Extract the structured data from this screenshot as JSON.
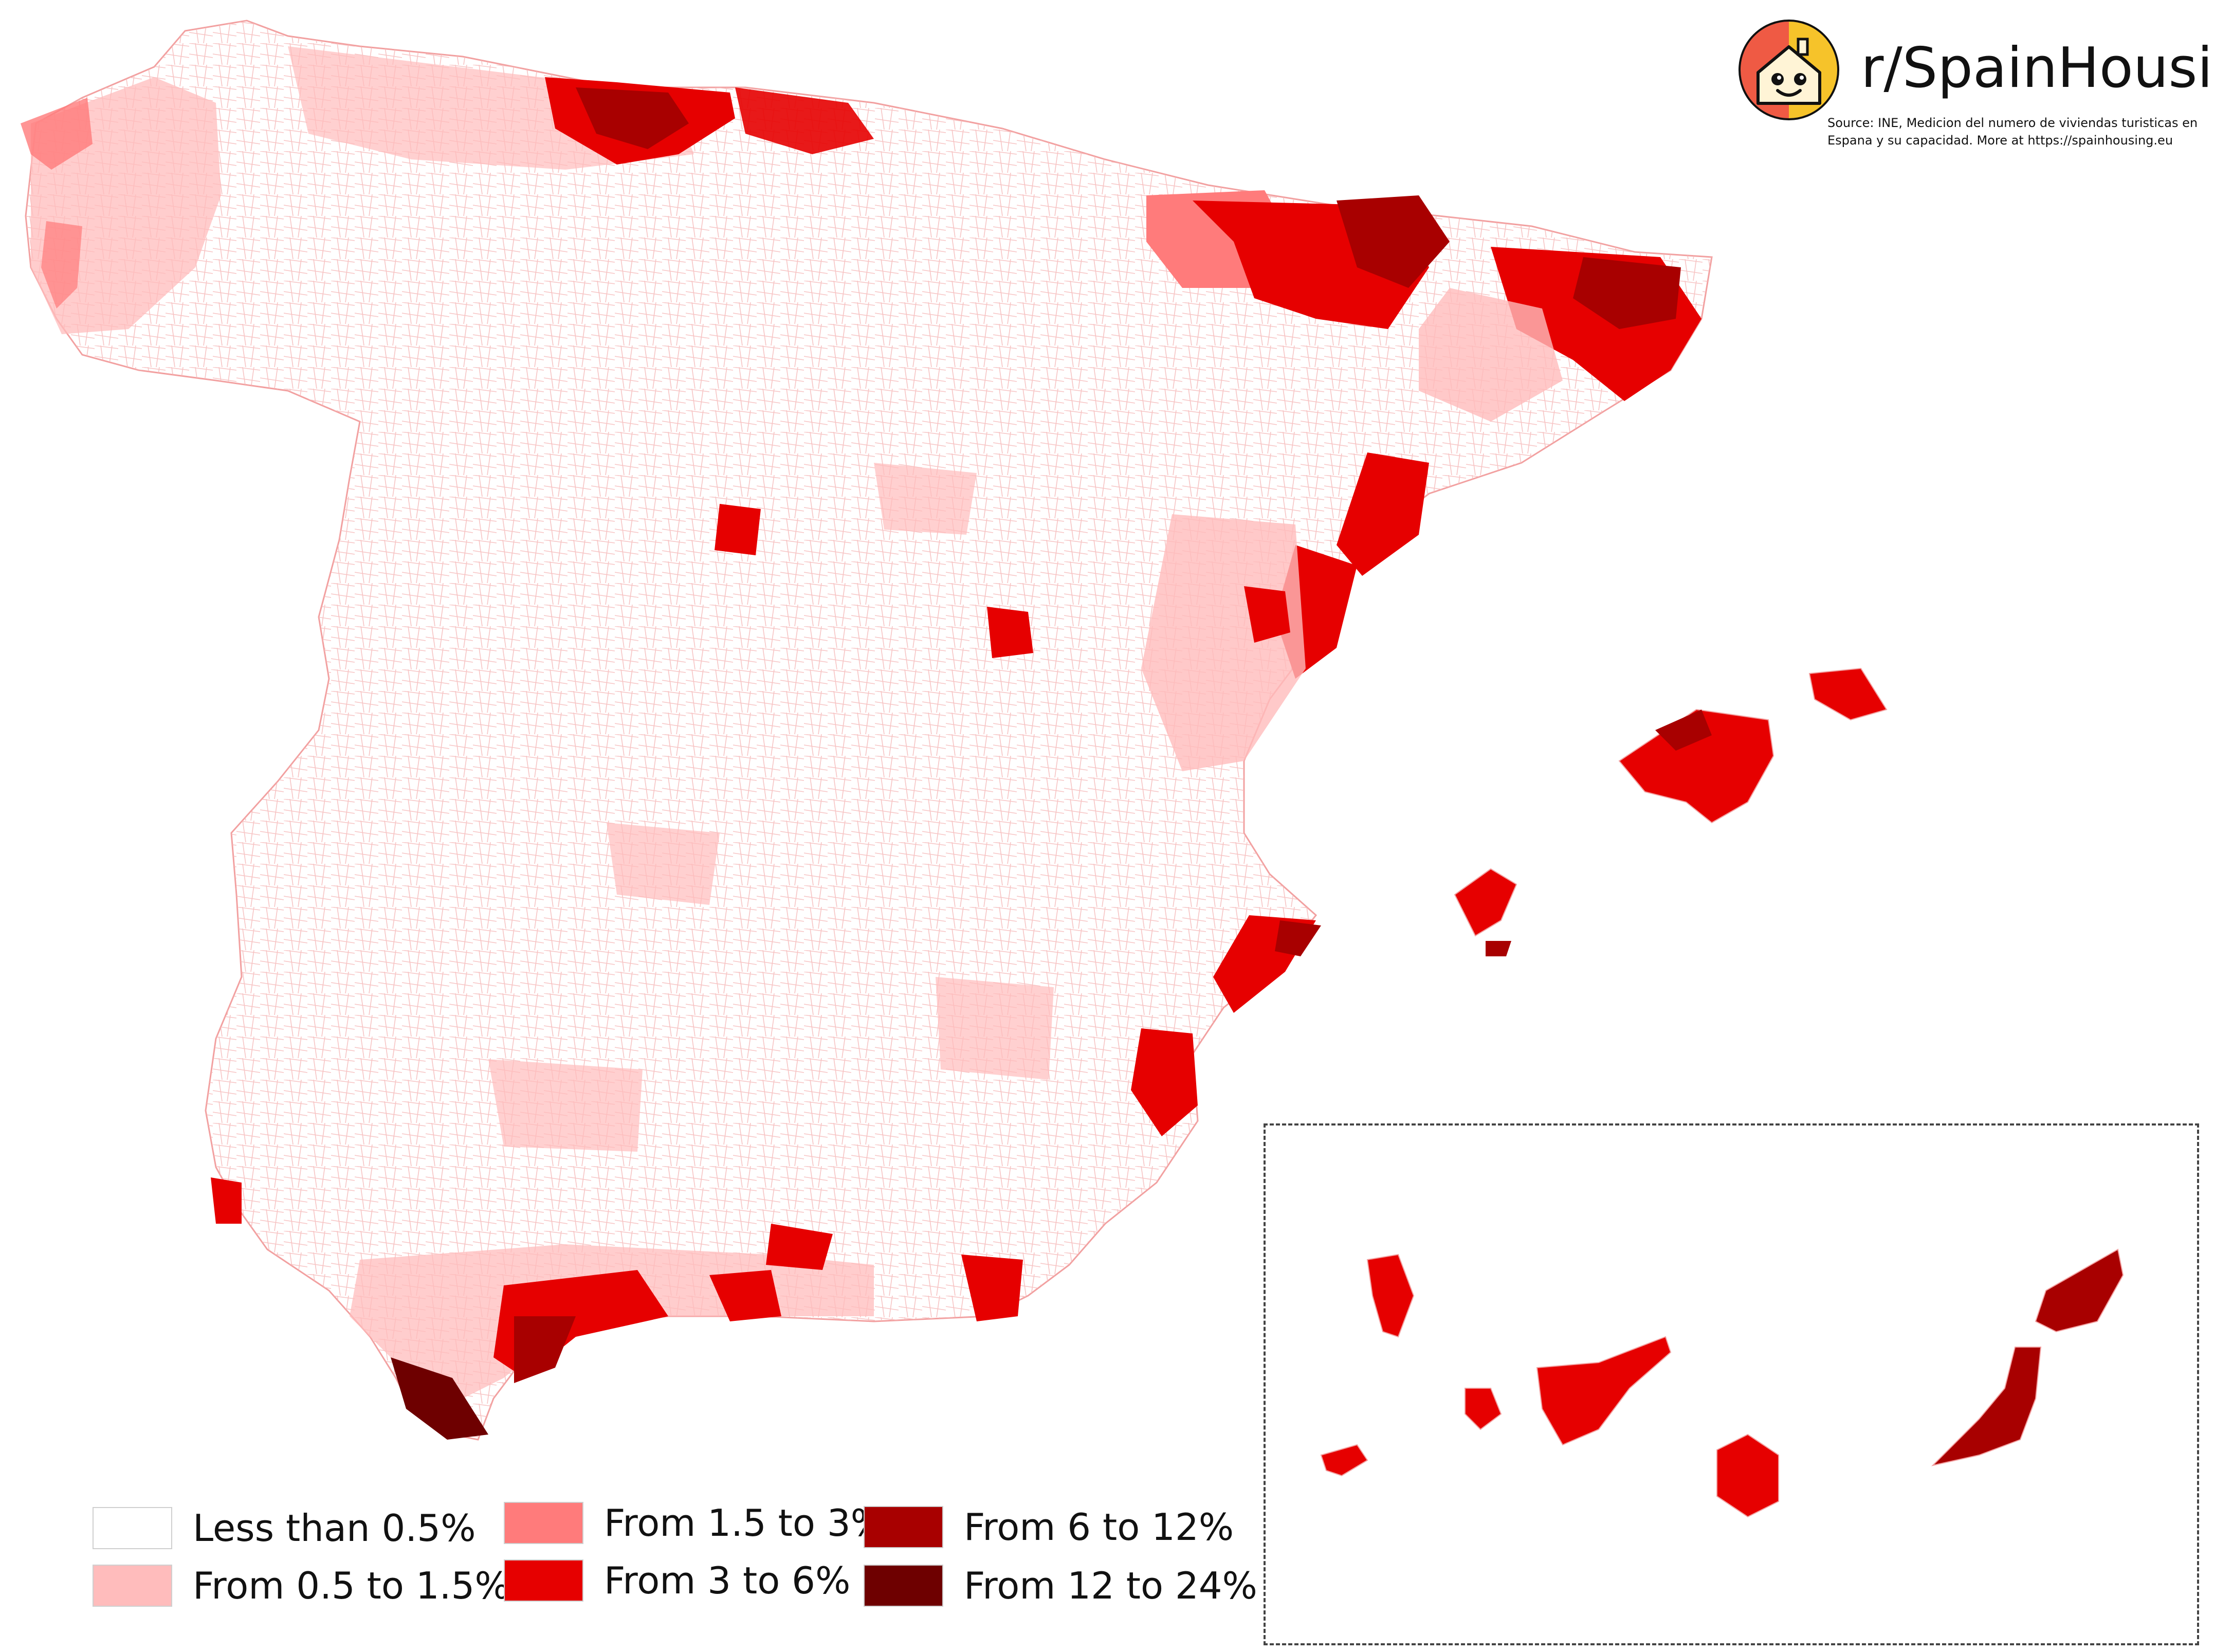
{
  "header": {
    "brand": "r/SpainHousing",
    "source_line1": "Source: INE, Medicion del numero de viviendas turisticas en",
    "source_line2": "Espana y su capacidad. More at https://spainhousing.eu",
    "logo_icon": "house-mascot-icon"
  },
  "legend": {
    "items": [
      {
        "label": "Less than 0.5%",
        "color": "#ffffff"
      },
      {
        "label": "From 0.5 to 1.5%",
        "color": "#ffbcbc"
      },
      {
        "label": "From 1.5 to 3%",
        "color": "#ff7b7b"
      },
      {
        "label": "From 3 to 6%",
        "color": "#e60000"
      },
      {
        "label": "From 6 to 12%",
        "color": "#a80000"
      },
      {
        "label": "From 12 to 24%",
        "color": "#6e0000"
      }
    ]
  },
  "map": {
    "border_color": "#f2a0a0",
    "background": "#ffffff"
  }
}
